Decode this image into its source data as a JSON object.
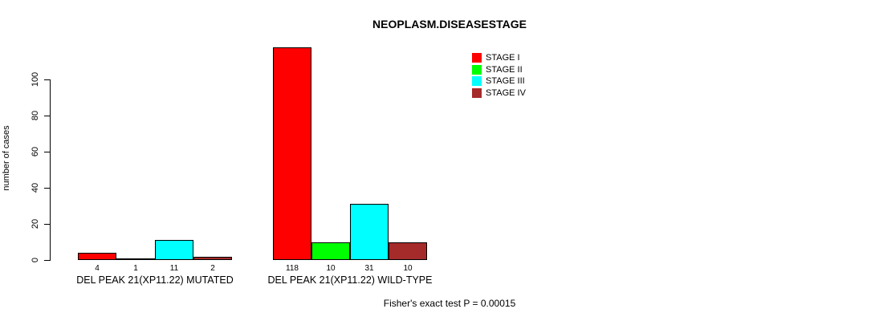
{
  "chart_data": {
    "type": "bar",
    "title": "NEOPLASM.DISEASESTAGE",
    "ylabel": "number of cases",
    "yticks": [
      0,
      20,
      40,
      60,
      80,
      100
    ],
    "ylim": [
      0,
      100
    ],
    "grid": false,
    "legend_position": "top-right",
    "categories": [
      "DEL PEAK 21(XP11.22) MUTATED",
      "DEL PEAK 21(XP11.22) WILD-TYPE"
    ],
    "series": [
      {
        "name": "STAGE I",
        "color": "#ff0000",
        "values": [
          4,
          118
        ]
      },
      {
        "name": "STAGE II",
        "color": "#00ff00",
        "values": [
          1,
          10
        ]
      },
      {
        "name": "STAGE III",
        "color": "#00ffff",
        "values": [
          11,
          31
        ]
      },
      {
        "name": "STAGE IV",
        "color": "#a52a2a",
        "values": [
          2,
          10
        ]
      }
    ],
    "annotation": "Fisher's exact test P = 0.00015"
  },
  "colors": {
    "axis": "#000000",
    "text": "#000000",
    "background": "#ffffff"
  }
}
